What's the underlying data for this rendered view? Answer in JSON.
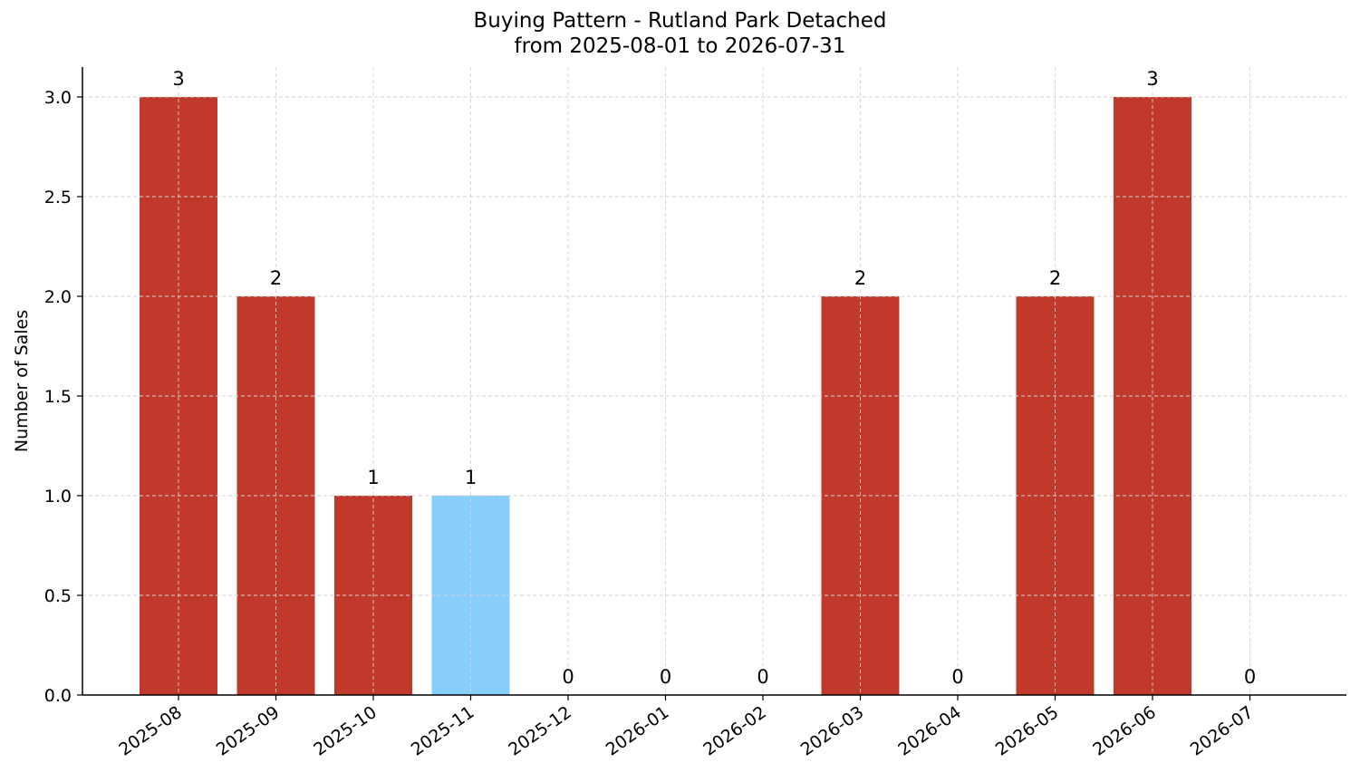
{
  "chart_data": {
    "type": "bar",
    "title": "Buying Pattern - Rutland Park Detached",
    "subtitle": "from 2025-08-01 to 2026-07-31",
    "xlabel": "",
    "ylabel": "Number of Sales",
    "categories": [
      "2025-08",
      "2025-09",
      "2025-10",
      "2025-11",
      "2025-12",
      "2026-01",
      "2026-02",
      "2026-03",
      "2026-04",
      "2026-05",
      "2026-06",
      "2026-07"
    ],
    "values": [
      3,
      2,
      1,
      1,
      0,
      0,
      0,
      2,
      0,
      2,
      3,
      0
    ],
    "highlight_index": 3,
    "ylim": [
      0,
      3.15
    ],
    "yticks": [
      "0.0",
      "0.5",
      "1.0",
      "1.5",
      "2.0",
      "2.5",
      "3.0"
    ],
    "ytick_values": [
      0,
      0.5,
      1.0,
      1.5,
      2.0,
      2.5,
      3.0
    ],
    "grid": true,
    "colors": {
      "bar": "#c0392b",
      "highlight": "#87cefa",
      "grid": "#d3d3d3",
      "axis": "#000000"
    }
  }
}
